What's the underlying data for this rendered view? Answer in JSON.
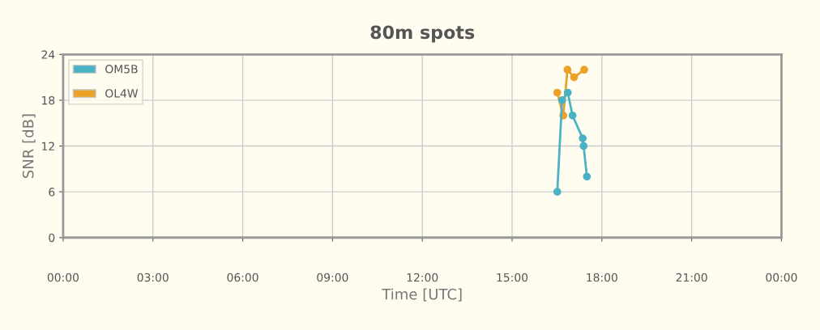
{
  "chart_data": {
    "type": "line",
    "title": "80m spots",
    "xlabel": "Time [UTC]",
    "ylabel": "SNR [dB]",
    "xlim": [
      0,
      24
    ],
    "xticks": [
      {
        "value": 0,
        "label": "00:00"
      },
      {
        "value": 3,
        "label": "03:00"
      },
      {
        "value": 6,
        "label": "06:00"
      },
      {
        "value": 9,
        "label": "09:00"
      },
      {
        "value": 12,
        "label": "12:00"
      },
      {
        "value": 15,
        "label": "15:00"
      },
      {
        "value": 18,
        "label": "18:00"
      },
      {
        "value": 21,
        "label": "21:00"
      },
      {
        "value": 24,
        "label": "00:00"
      }
    ],
    "ylim": [
      0,
      24
    ],
    "yticks": [
      0,
      6,
      12,
      18,
      24
    ],
    "grid": true,
    "legend": "top left",
    "marker": "circle",
    "line_style": "solid",
    "series": [
      {
        "name": "OM5B",
        "color": "#4bb2c5",
        "x": [
          16.51,
          16.67,
          16.86,
          17.02,
          17.36,
          17.39,
          17.5
        ],
        "values": [
          6,
          18,
          19,
          16,
          13,
          12,
          8
        ]
      },
      {
        "name": "OL4W",
        "color": "#eaa228",
        "x": [
          16.51,
          16.71,
          16.85,
          17.07,
          17.41
        ],
        "values": [
          19,
          16,
          22,
          21,
          22
        ]
      }
    ]
  }
}
